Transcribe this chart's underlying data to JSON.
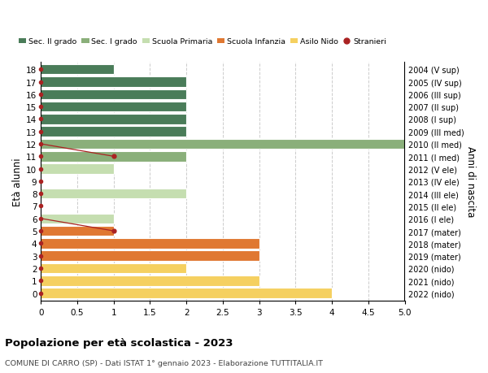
{
  "ages": [
    18,
    17,
    16,
    15,
    14,
    13,
    12,
    11,
    10,
    9,
    8,
    7,
    6,
    5,
    4,
    3,
    2,
    1,
    0
  ],
  "right_labels": [
    "2004 (V sup)",
    "2005 (IV sup)",
    "2006 (III sup)",
    "2007 (II sup)",
    "2008 (I sup)",
    "2009 (III med)",
    "2010 (II med)",
    "2011 (I med)",
    "2012 (V ele)",
    "2013 (IV ele)",
    "2014 (III ele)",
    "2015 (II ele)",
    "2016 (I ele)",
    "2017 (mater)",
    "2018 (mater)",
    "2019 (mater)",
    "2020 (nido)",
    "2021 (nido)",
    "2022 (nido)"
  ],
  "bar_values": [
    1,
    2,
    2,
    2,
    2,
    2,
    5,
    2,
    1,
    0,
    2,
    0,
    1,
    1,
    3,
    3,
    2,
    3,
    4
  ],
  "bar_colors": [
    "#4a7c59",
    "#4a7c59",
    "#4a7c59",
    "#4a7c59",
    "#4a7c59",
    "#4a7c59",
    "#8aaf7a",
    "#8aaf7a",
    "#c5deb0",
    "#c5deb0",
    "#c5deb0",
    "#c5deb0",
    "#c5deb0",
    "#e07832",
    "#e07832",
    "#e07832",
    "#f5d060",
    "#f5d060",
    "#f5d060"
  ],
  "stranieri_color": "#aa2222",
  "title": "Popolazione per età scolastica - 2023",
  "subtitle": "COMUNE DI CARRO (SP) - Dati ISTAT 1° gennaio 2023 - Elaborazione TUTTITALIA.IT",
  "ylabel_left": "Età alunni",
  "ylabel_right": "Anni di nascita",
  "xlim": [
    0,
    5.0
  ],
  "legend_labels": [
    "Sec. II grado",
    "Sec. I grado",
    "Scuola Primaria",
    "Scuola Infanzia",
    "Asilo Nido",
    "Stranieri"
  ],
  "legend_colors": [
    "#4a7c59",
    "#8aaf7a",
    "#c5deb0",
    "#e07832",
    "#f5d060",
    "#aa2222"
  ],
  "bg_color": "#ffffff",
  "grid_color": "#cccccc",
  "bar_height": 0.82
}
